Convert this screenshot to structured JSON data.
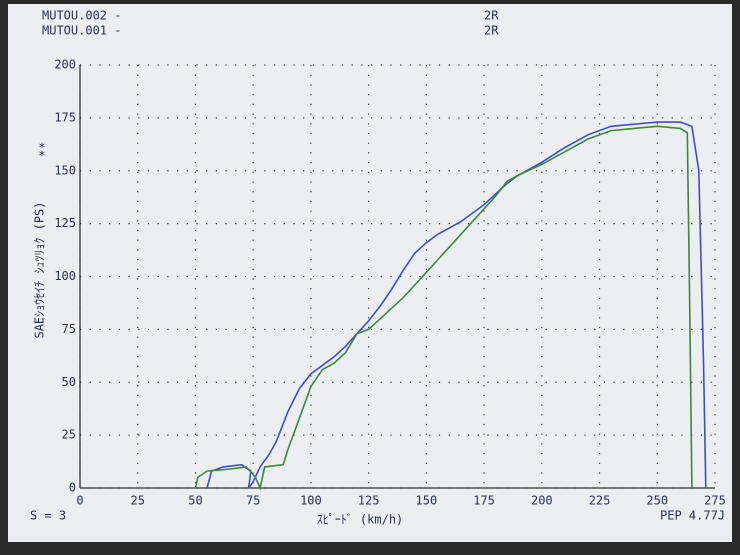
{
  "chart_data": {
    "type": "line",
    "xlabel": "ｽﾋﾟｰﾄﾞ (km/h)",
    "ylabel": "SAEｼｮｳｾｲﾁ ｼｭﾂﾘｮｸ (PS)",
    "footer_left": "S = 3",
    "footer_right": "PEP 4.77J",
    "xlim": [
      0,
      275
    ],
    "xticks": [
      0,
      25,
      50,
      75,
      100,
      125,
      150,
      175,
      200,
      225,
      250,
      275
    ],
    "ylim": [
      0,
      200
    ],
    "yticks": [
      0,
      25,
      50,
      75,
      100,
      125,
      150,
      175,
      200
    ],
    "grid": true,
    "series": [
      {
        "name": "MUTOU.002 -",
        "gear": "2R",
        "symbol": "*",
        "color": "#3a4fd0",
        "x": [
          55,
          57,
          62,
          70,
          74,
          73,
          75,
          78,
          82,
          85,
          90,
          95,
          100,
          105,
          110,
          115,
          120,
          125,
          130,
          135,
          140,
          145,
          150,
          155,
          160,
          165,
          170,
          175,
          180,
          185,
          190,
          200,
          210,
          220,
          230,
          240,
          250,
          255,
          260,
          265,
          268,
          270,
          271
        ],
        "values": [
          0,
          8,
          10,
          11,
          8,
          0,
          3,
          10,
          16,
          22,
          36,
          47,
          54,
          58,
          62,
          67,
          73,
          79,
          86,
          94,
          103,
          111,
          116,
          120,
          123,
          126,
          130,
          134,
          139,
          144,
          148,
          154,
          161,
          167,
          171,
          172,
          173,
          173,
          173,
          171,
          150,
          60,
          0
        ]
      },
      {
        "name": "MUTOU.001 -",
        "gear": "2R",
        "symbol": "*",
        "color": "#3a8a3a",
        "x": [
          50,
          51,
          55,
          65,
          72,
          76,
          78,
          80,
          88,
          90,
          95,
          100,
          105,
          110,
          115,
          120,
          125,
          130,
          135,
          140,
          145,
          150,
          155,
          160,
          165,
          170,
          175,
          180,
          185,
          190,
          200,
          210,
          220,
          230,
          240,
          250,
          260,
          263,
          264,
          265
        ],
        "values": [
          0,
          5,
          8,
          9,
          10,
          5,
          0,
          10,
          11,
          18,
          33,
          48,
          56,
          59,
          64,
          73,
          75,
          80,
          85,
          90,
          96,
          102,
          108,
          114,
          120,
          126,
          132,
          138,
          145,
          148,
          153,
          159,
          165,
          169,
          170,
          171,
          170,
          168,
          90,
          0
        ]
      }
    ]
  }
}
